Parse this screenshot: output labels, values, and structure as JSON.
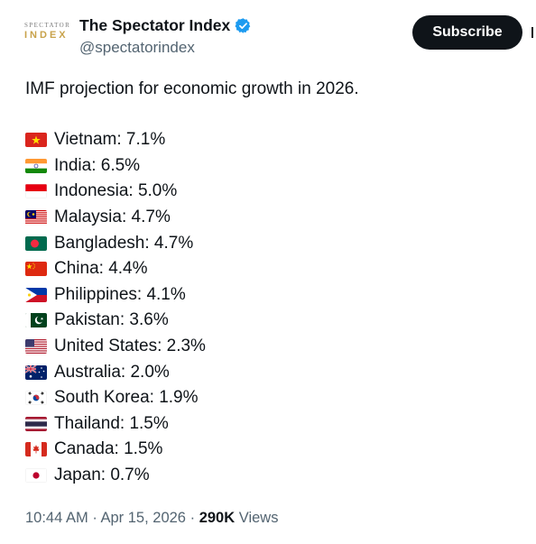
{
  "account": {
    "avatar_line1": "SPECTATOR",
    "avatar_line2": "INDEX",
    "display_name": "The Spectator Index",
    "handle": "@spectatorindex",
    "verified_icon": "verified-badge-icon",
    "brand_color": "#1d9bf0"
  },
  "actions": {
    "subscribe_label": "Subscribe",
    "more_icon": "more-options-icon"
  },
  "tweet": {
    "intro": "IMF projection for economic growth in 2026.",
    "items": [
      {
        "flag": "vietnam",
        "text": "Vietnam: 7.1%"
      },
      {
        "flag": "india",
        "text": "India: 6.5%"
      },
      {
        "flag": "indonesia",
        "text": "Indonesia: 5.0%"
      },
      {
        "flag": "malaysia",
        "text": "Malaysia: 4.7%"
      },
      {
        "flag": "bangladesh",
        "text": "Bangladesh: 4.7%"
      },
      {
        "flag": "china",
        "text": "China: 4.4%"
      },
      {
        "flag": "philippines",
        "text": "Philippines: 4.1%"
      },
      {
        "flag": "pakistan",
        "text": "Pakistan: 3.6%"
      },
      {
        "flag": "united-states",
        "text": "United States: 2.3%"
      },
      {
        "flag": "australia",
        "text": "Australia: 2.0%"
      },
      {
        "flag": "south-korea",
        "text": "South Korea: 1.9%"
      },
      {
        "flag": "thailand",
        "text": "Thailand: 1.5%"
      },
      {
        "flag": "canada",
        "text": "Canada: 1.5%"
      },
      {
        "flag": "japan",
        "text": "Japan: 0.7%"
      }
    ]
  },
  "meta": {
    "time": "10:44 AM",
    "separator": "·",
    "date": "Apr 15, 2026",
    "views_count": "290K",
    "views_label": "Views"
  }
}
